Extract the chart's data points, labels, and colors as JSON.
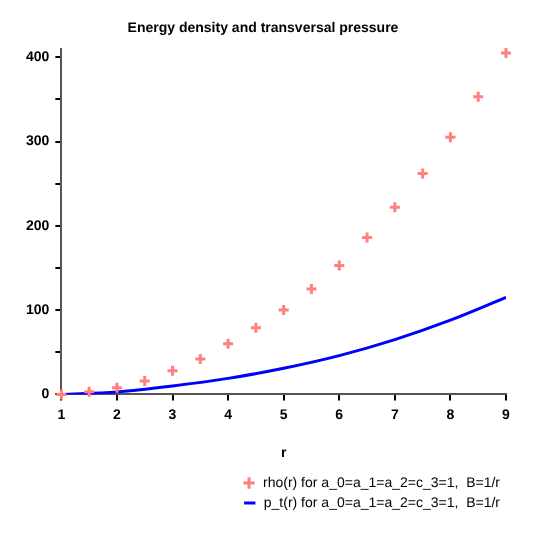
{
  "chart_data": {
    "type": "line",
    "title": "Energy density and transversal pressure",
    "xlabel": "r",
    "xlim": [
      1,
      9
    ],
    "xticks": [
      1,
      2,
      3,
      4,
      5,
      6,
      7,
      8,
      9
    ],
    "ylim": [
      0,
      410
    ],
    "yticks": [
      0,
      {
        "value": 50,
        "label": null
      },
      100,
      {
        "value": 150,
        "label": null
      },
      200,
      {
        "value": 250,
        "label": null
      },
      300,
      {
        "value": 350,
        "label": null
      },
      400
    ],
    "grid": false,
    "legend": "bottom",
    "series": [
      {
        "name": "rho(r) for a_0=a_1=a_2=c_3=1,  B=1/r",
        "type": "scatter",
        "marker": "cross",
        "color": "#ff8080",
        "x": [
          1,
          1.5,
          2,
          2.5,
          3,
          3.5,
          4,
          4.5,
          5,
          5.5,
          6,
          6.5,
          7,
          7.5,
          8,
          8.5,
          9
        ],
        "values": [
          0,
          3,
          8,
          16,
          28,
          42,
          60,
          79,
          100,
          125,
          153,
          186,
          222,
          262,
          305,
          353,
          405
        ]
      },
      {
        "name": "p_t(r) for a_0=a_1=a_2=c_3=1,  B=1/r",
        "marker": "none",
        "line_style": "solid",
        "color": "#0000ff",
        "x": [
          1,
          2,
          3,
          4,
          5,
          6,
          7,
          8,
          9
        ],
        "values": [
          0,
          3,
          10,
          19,
          31,
          46,
          65,
          88,
          115
        ]
      }
    ]
  }
}
